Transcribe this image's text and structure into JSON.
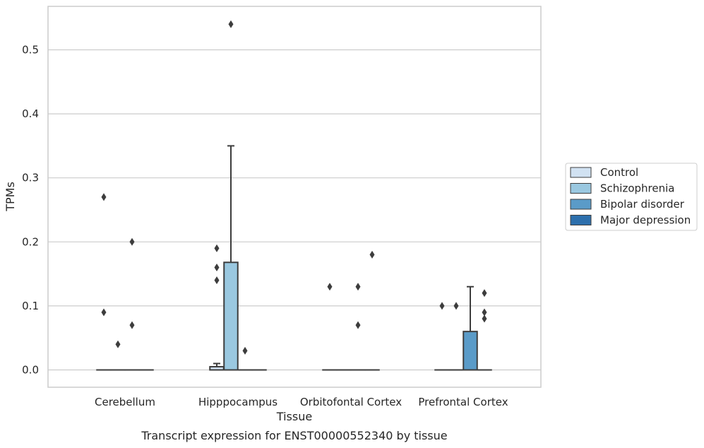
{
  "chart_data": {
    "type": "box",
    "title": "",
    "caption": "Transcript expression for ENST00000552340 by tissue",
    "xlabel": "Tissue",
    "ylabel": "TPMs",
    "ylim": [
      -0.027,
      0.567
    ],
    "yticks": [
      "0.0",
      "0.1",
      "0.2",
      "0.3",
      "0.4",
      "0.5"
    ],
    "ytick_values": [
      0.0,
      0.1,
      0.2,
      0.3,
      0.4,
      0.5
    ],
    "grid": true,
    "legend_position": "right",
    "categories": [
      "Cerebellum",
      "Hipppocampus",
      "Orbitofontal Cortex",
      "Prefrontal Cortex"
    ],
    "series": [
      {
        "name": "Control",
        "color": "#d1e2f2",
        "boxes": [
          {
            "q1": 0,
            "median": 0,
            "q3": 0,
            "whislo": 0,
            "whishi": 0,
            "outliers": [
              0.27,
              0.09
            ]
          },
          {
            "q1": 0,
            "median": 0,
            "q3": 0.005,
            "whislo": 0,
            "whishi": 0.01,
            "outliers": [
              0.19,
              0.16,
              0.14
            ]
          },
          {
            "q1": 0,
            "median": 0,
            "q3": 0,
            "whislo": 0,
            "whishi": 0,
            "outliers": [
              0.13
            ]
          },
          {
            "q1": 0,
            "median": 0,
            "q3": 0,
            "whislo": 0,
            "whishi": 0,
            "outliers": [
              0.1
            ]
          }
        ]
      },
      {
        "name": "Schizophrenia",
        "color": "#9ac8e0",
        "boxes": [
          {
            "q1": 0,
            "median": 0,
            "q3": 0,
            "whislo": 0,
            "whishi": 0,
            "outliers": [
              0.04
            ]
          },
          {
            "q1": 0,
            "median": 0,
            "q3": 0.168,
            "whislo": 0,
            "whishi": 0.35,
            "outliers": [
              0.54
            ]
          },
          {
            "q1": 0,
            "median": 0,
            "q3": 0,
            "whislo": 0,
            "whishi": 0,
            "outliers": []
          },
          {
            "q1": 0,
            "median": 0,
            "q3": 0,
            "whislo": 0,
            "whishi": 0,
            "outliers": [
              0.1
            ]
          }
        ]
      },
      {
        "name": "Bipolar disorder",
        "color": "#5a9bc8",
        "boxes": [
          {
            "q1": 0,
            "median": 0,
            "q3": 0,
            "whislo": 0,
            "whishi": 0,
            "outliers": [
              0.2,
              0.07
            ]
          },
          {
            "q1": 0,
            "median": 0,
            "q3": 0,
            "whislo": 0,
            "whishi": 0,
            "outliers": [
              0.03
            ]
          },
          {
            "q1": 0,
            "median": 0,
            "q3": 0,
            "whislo": 0,
            "whishi": 0,
            "outliers": [
              0.13,
              0.07
            ]
          },
          {
            "q1": 0,
            "median": 0,
            "q3": 0.06,
            "whislo": 0,
            "whishi": 0.13,
            "outliers": []
          }
        ]
      },
      {
        "name": "Major depression",
        "color": "#2d6fac",
        "boxes": [
          {
            "q1": 0,
            "median": 0,
            "q3": 0,
            "whislo": 0,
            "whishi": 0,
            "outliers": []
          },
          {
            "q1": 0,
            "median": 0,
            "q3": 0,
            "whislo": 0,
            "whishi": 0,
            "outliers": []
          },
          {
            "q1": 0,
            "median": 0,
            "q3": 0,
            "whislo": 0,
            "whishi": 0,
            "outliers": [
              0.18
            ]
          },
          {
            "q1": 0,
            "median": 0,
            "q3": 0,
            "whislo": 0,
            "whishi": 0,
            "outliers": [
              0.12,
              0.09,
              0.08
            ]
          }
        ]
      }
    ]
  }
}
